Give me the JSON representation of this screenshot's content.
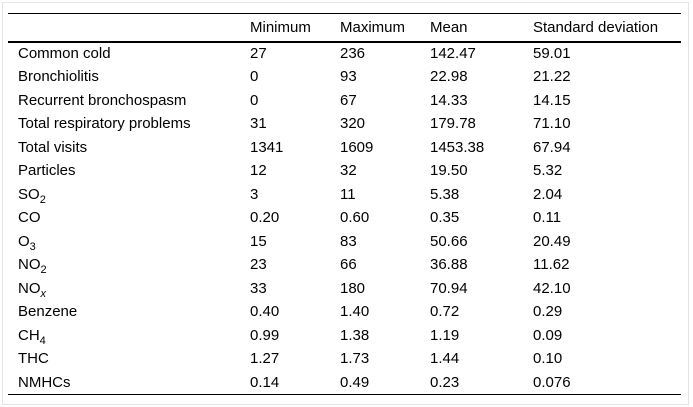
{
  "panel": {
    "background": "#ffffff",
    "rule_color": "#000000",
    "frame_color": "#e4e4e4"
  },
  "table": {
    "columns": [
      "",
      "Minimum",
      "Maximum",
      "Mean",
      "Standard deviation"
    ],
    "rows": [
      {
        "label": [
          {
            "text": "Common cold"
          }
        ],
        "min": "27",
        "max": "236",
        "mean": "142.47",
        "sd": "59.01"
      },
      {
        "label": [
          {
            "text": "Bronchiolitis"
          }
        ],
        "min": "0",
        "max": "93",
        "mean": "22.98",
        "sd": "21.22"
      },
      {
        "label": [
          {
            "text": "Recurrent bronchospasm"
          }
        ],
        "min": "0",
        "max": "67",
        "mean": "14.33",
        "sd": "14.15"
      },
      {
        "label": [
          {
            "text": "Total respiratory problems"
          }
        ],
        "min": "31",
        "max": "320",
        "mean": "179.78",
        "sd": "71.10"
      },
      {
        "label": [
          {
            "text": "Total visits"
          }
        ],
        "min": "1341",
        "max": "1609",
        "mean": "1453.38",
        "sd": "67.94"
      },
      {
        "label": [
          {
            "text": "Particles"
          }
        ],
        "min": "12",
        "max": "32",
        "mean": "19.50",
        "sd": "5.32"
      },
      {
        "label": [
          {
            "text": "SO"
          },
          {
            "text": "2",
            "sub": true
          }
        ],
        "min": "3",
        "max": "11",
        "mean": "5.38",
        "sd": "2.04"
      },
      {
        "label": [
          {
            "text": "CO"
          }
        ],
        "min": "0.20",
        "max": "0.60",
        "mean": "0.35",
        "sd": "0.11"
      },
      {
        "label": [
          {
            "text": "O"
          },
          {
            "text": "3",
            "sub": true
          }
        ],
        "min": "15",
        "max": "83",
        "mean": "50.66",
        "sd": "20.49"
      },
      {
        "label": [
          {
            "text": "NO"
          },
          {
            "text": "2",
            "sub": true
          }
        ],
        "min": "23",
        "max": "66",
        "mean": "36.88",
        "sd": "11.62"
      },
      {
        "label": [
          {
            "text": "NO"
          },
          {
            "text": "x",
            "sub": true,
            "italic": true
          }
        ],
        "min": "33",
        "max": "180",
        "mean": "70.94",
        "sd": "42.10"
      },
      {
        "label": [
          {
            "text": "Benzene"
          }
        ],
        "min": "0.40",
        "max": "1.40",
        "mean": "0.72",
        "sd": "0.29"
      },
      {
        "label": [
          {
            "text": "CH"
          },
          {
            "text": "4",
            "sub": true
          }
        ],
        "min": "0.99",
        "max": "1.38",
        "mean": "1.19",
        "sd": "0.09"
      },
      {
        "label": [
          {
            "text": "THC"
          }
        ],
        "min": "1.27",
        "max": "1.73",
        "mean": "1.44",
        "sd": "0.10"
      },
      {
        "label": [
          {
            "text": "NMHCs"
          }
        ],
        "min": "0.14",
        "max": "0.49",
        "mean": "0.23",
        "sd": "0.076"
      }
    ]
  }
}
